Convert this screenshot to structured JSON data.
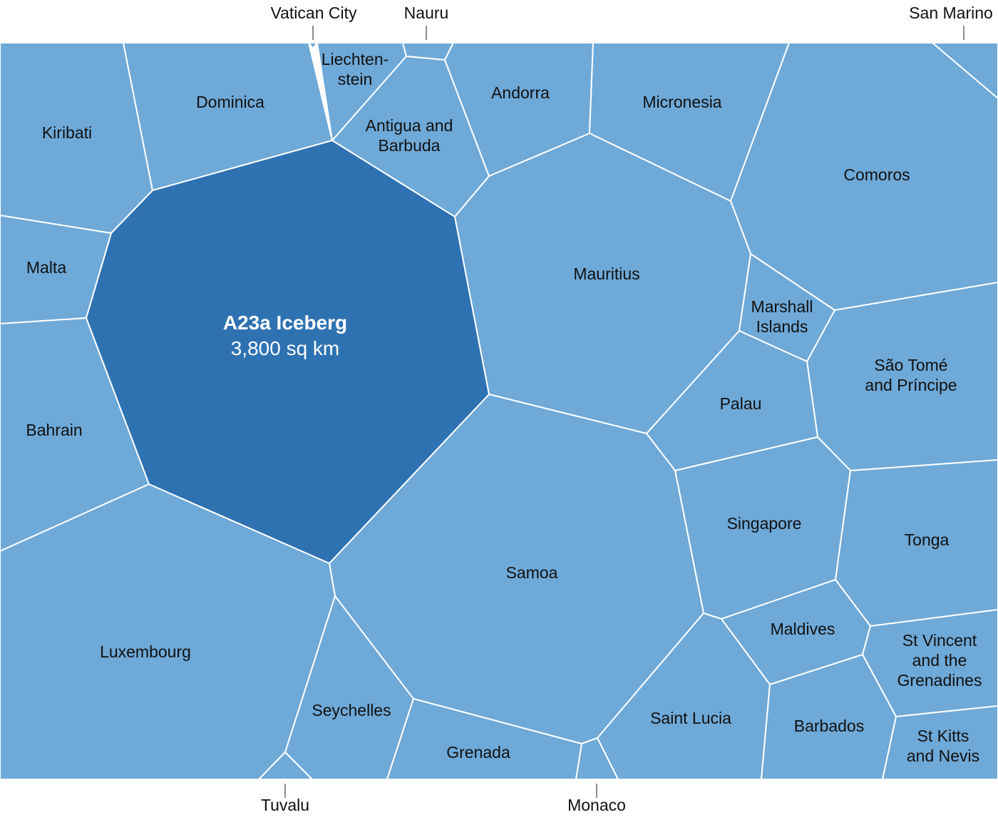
{
  "colors": {
    "country_fill": "#6ea9d8",
    "iceberg_fill": "#2e72b2",
    "border": "#ffffff",
    "label": "#111111",
    "iceberg_label": "#ffffff"
  },
  "iceberg": {
    "name": "A23a Iceberg",
    "area": "3,800 sq km"
  },
  "regions": [
    {
      "id": "kiribati",
      "lines": [
        "Kiribati"
      ]
    },
    {
      "id": "dominica",
      "lines": [
        "Dominica"
      ]
    },
    {
      "id": "liechtenstein",
      "lines": [
        "Liechten-",
        "stein"
      ]
    },
    {
      "id": "antigua-and-barbuda",
      "lines": [
        "Antigua and",
        "Barbuda"
      ]
    },
    {
      "id": "andorra",
      "lines": [
        "Andorra"
      ]
    },
    {
      "id": "micronesia",
      "lines": [
        "Micronesia"
      ]
    },
    {
      "id": "comoros",
      "lines": [
        "Comoros"
      ]
    },
    {
      "id": "malta",
      "lines": [
        "Malta"
      ]
    },
    {
      "id": "mauritius",
      "lines": [
        "Mauritius"
      ]
    },
    {
      "id": "marshall-islands",
      "lines": [
        "Marshall",
        "Islands"
      ]
    },
    {
      "id": "sao-tome-and-principe",
      "lines": [
        "São Tomé",
        "and Príncipe"
      ]
    },
    {
      "id": "palau",
      "lines": [
        "Palau"
      ]
    },
    {
      "id": "bahrain",
      "lines": [
        "Bahrain"
      ]
    },
    {
      "id": "singapore",
      "lines": [
        "Singapore"
      ]
    },
    {
      "id": "tonga",
      "lines": [
        "Tonga"
      ]
    },
    {
      "id": "samoa",
      "lines": [
        "Samoa"
      ]
    },
    {
      "id": "luxembourg",
      "lines": [
        "Luxembourg"
      ]
    },
    {
      "id": "maldives",
      "lines": [
        "Maldives"
      ]
    },
    {
      "id": "st-vincent-and-the-grenadines",
      "lines": [
        "St Vincent",
        "and the",
        "Grenadines"
      ]
    },
    {
      "id": "seychelles",
      "lines": [
        "Seychelles"
      ]
    },
    {
      "id": "saint-lucia",
      "lines": [
        "Saint Lucia"
      ]
    },
    {
      "id": "barbados",
      "lines": [
        "Barbados"
      ]
    },
    {
      "id": "grenada",
      "lines": [
        "Grenada"
      ]
    },
    {
      "id": "st-kitts-and-nevis",
      "lines": [
        "St Kitts",
        "and Nevis"
      ]
    }
  ],
  "external_labels": [
    {
      "id": "vatican-city",
      "text": "Vatican City"
    },
    {
      "id": "nauru",
      "text": "Nauru"
    },
    {
      "id": "san-marino",
      "text": "San Marino"
    },
    {
      "id": "tuvalu",
      "text": "Tuvalu"
    },
    {
      "id": "monaco",
      "text": "Monaco"
    }
  ]
}
